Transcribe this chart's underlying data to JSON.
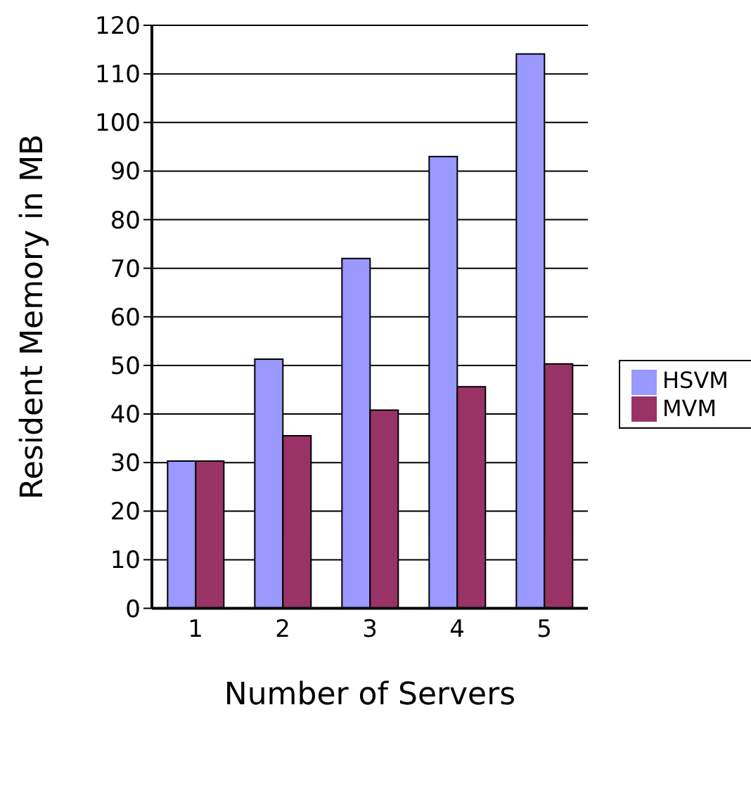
{
  "chart_data": {
    "type": "bar",
    "xlabel": "Number of Servers",
    "ylabel": "Resident Memory in MB",
    "categories": [
      "1",
      "2",
      "3",
      "4",
      "5"
    ],
    "series": [
      {
        "name": "HSVM",
        "color": "#9999ff",
        "values": [
          30.3,
          51.3,
          72.0,
          93.0,
          114.1
        ]
      },
      {
        "name": "MVM",
        "color": "#993366",
        "values": [
          30.3,
          35.5,
          40.8,
          45.6,
          50.3
        ]
      }
    ],
    "ylim": [
      0,
      120
    ],
    "yticks": [
      0,
      10,
      20,
      30,
      40,
      50,
      60,
      70,
      80,
      90,
      100,
      110,
      120
    ],
    "grid": "y",
    "legend": "right"
  }
}
